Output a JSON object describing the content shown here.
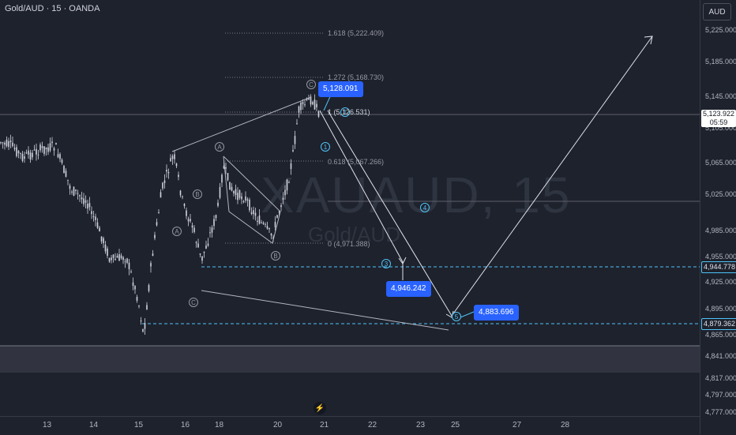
{
  "header": {
    "symbol_title": "Gold/AUD · 15 · OANDA"
  },
  "watermark": {
    "ticker": "XAUAUD, 15",
    "name": "Gold/AUD"
  },
  "price_axis": {
    "currency": "AUD",
    "ticks": [
      "5,225.000",
      "5,185.000",
      "5,145.000",
      "5,105.000",
      "5,065.000",
      "5,025.000",
      "4,985.000",
      "4,955.000",
      "4,925.000",
      "4,895.000",
      "4,865.000",
      "4,841.000",
      "4,817.000",
      "4,797.000",
      "4,777.000"
    ],
    "current_price": "5,123.922",
    "countdown": "05:59",
    "level_1": "4,944.778",
    "level_2": "4,879.362"
  },
  "time_axis": {
    "ticks": [
      "13",
      "14",
      "15",
      "16",
      "18",
      "20",
      "21",
      "22",
      "23",
      "25",
      "27",
      "28"
    ]
  },
  "fibonacci": {
    "l1618": "1.618 (5,222.409)",
    "l1272": "1.272 (5,168.730)",
    "l1": "1 (5,126.531)",
    "l0618": "0.618 (5,067.266)",
    "l0": "0 (4,971.388)"
  },
  "tags": {
    "peak": "5,128.091",
    "wave3": "4,946.242",
    "wave5": "4,883.696"
  },
  "wave_labels": {
    "A": "A",
    "B": "B",
    "C": "C",
    "w1": "1",
    "w3": "3",
    "w4": "4",
    "w5": "5"
  },
  "colors": {
    "background": "#1e222d",
    "accent": "#2962ff",
    "cyan": "#4fc3f7",
    "candle": "#d1d4dc"
  }
}
